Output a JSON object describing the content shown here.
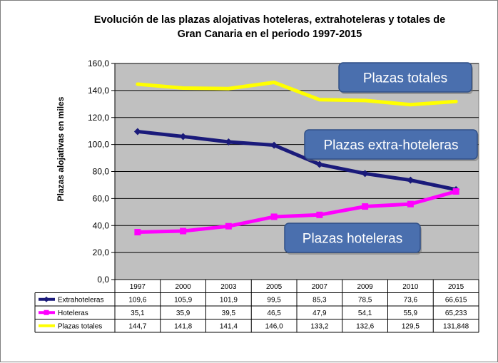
{
  "chart_data": {
    "type": "line",
    "title_line1": "Evolución de las plazas alojativas hoteleras, extrahoteleras y totales de",
    "title_line2": "Gran Canaria en el periodo 1997-2015",
    "ylabel": "Plazas alojativas en miles",
    "ylim": [
      0,
      160
    ],
    "yticks": [
      "0,0",
      "20,0",
      "40,0",
      "60,0",
      "80,0",
      "100,0",
      "120,0",
      "140,0",
      "160,0"
    ],
    "categories": [
      "1997",
      "2000",
      "2003",
      "2005",
      "2007",
      "2009",
      "2010",
      "2015"
    ],
    "series": [
      {
        "name": "Extrahoteleras",
        "color": "#1a1a7a",
        "marker": "diamond",
        "values": [
          109.6,
          105.9,
          101.9,
          99.5,
          85.3,
          78.5,
          73.6,
          66.615
        ],
        "labels": [
          "109,6",
          "105,9",
          "101,9",
          "99,5",
          "85,3",
          "78,5",
          "73,6",
          "66,615"
        ]
      },
      {
        "name": "Hoteleras",
        "color": "#ff00ff",
        "marker": "square",
        "values": [
          35.1,
          35.9,
          39.5,
          46.5,
          47.9,
          54.1,
          55.9,
          65.233
        ],
        "labels": [
          "35,1",
          "35,9",
          "39,5",
          "46,5",
          "47,9",
          "54,1",
          "55,9",
          "65,233"
        ]
      },
      {
        "name": "Plazas totales",
        "color": "#ffff00",
        "marker": "none",
        "values": [
          144.7,
          141.8,
          141.4,
          146.0,
          133.2,
          132.6,
          129.5,
          131.848
        ],
        "labels": [
          "144,7",
          "141,8",
          "141,4",
          "146,0",
          "133,2",
          "132,6",
          "129,5",
          "131,848"
        ]
      }
    ],
    "plot_background": "#c0c0c0",
    "grid": true,
    "legend": "data-table",
    "annotations": [
      {
        "text": "Plazas totales",
        "series": "Plazas totales"
      },
      {
        "text": "Plazas extra-hoteleras",
        "series": "Extrahoteleras"
      },
      {
        "text": "Plazas hoteleras",
        "series": "Hoteleras"
      }
    ],
    "annotation_color": "#4a6fae"
  }
}
